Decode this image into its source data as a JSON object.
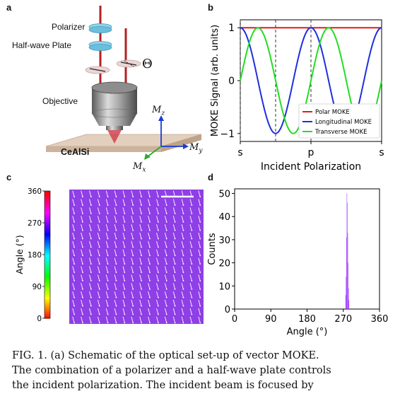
{
  "panel_labels": {
    "a": "a",
    "b": "b",
    "c": "c",
    "d": "d"
  },
  "schematic": {
    "polarizer_label": "Polarizer",
    "halfwave_label": "Half-wave Plate",
    "theta_symbol": "Θ",
    "objective_label": "Objective",
    "sample_label": "CeAlSi",
    "axis_z": "M",
    "axis_z_sub": "z",
    "axis_y": "M",
    "axis_y_sub": "y",
    "axis_x": "M",
    "axis_x_sub": "x",
    "colors": {
      "beam": "#b22222",
      "plate": "#8fd3ea",
      "sample": "#d9c3ae",
      "axis_z": "#1a3ccf",
      "axis_y": "#1a3ccf",
      "axis_x": "#2ea82e"
    }
  },
  "chart_data": [
    {
      "panel": "b",
      "type": "line",
      "x": [
        0,
        90,
        180,
        270,
        360
      ],
      "xticks": [
        0,
        180,
        360
      ],
      "xtick_labels": [
        "s",
        "p",
        "s"
      ],
      "xlabel": "Incident Polarization",
      "ylabel": "MOKE Signal (arb. units)",
      "yticks": [
        -1,
        0,
        1
      ],
      "ylim": [
        -1.15,
        1.15
      ],
      "xlim": [
        0,
        360
      ],
      "vlines_dashed": [
        0,
        90,
        180
      ],
      "series": [
        {
          "name": "Polar MOKE",
          "color": "#e41a1c",
          "formula": "1"
        },
        {
          "name": "Longitudinal MOKE",
          "color": "#1f2fdc",
          "formula": "cos(2x)"
        },
        {
          "name": "Transverse MOKE",
          "color": "#22dd22",
          "formula": "sin(2x)"
        }
      ],
      "legend_position": "bottom-right"
    },
    {
      "panel": "c",
      "type": "heatmap",
      "colorbar_label": "Angle (°)",
      "colorbar_ticks": [
        0,
        90,
        180,
        270,
        360
      ],
      "grid_rows": 16,
      "grid_cols": 16,
      "arrow_angle_deg": 285,
      "background_color": "#8f3fe6",
      "arrow_color": "#ffffff"
    },
    {
      "panel": "d",
      "type": "bar",
      "xlabel": "Angle (°)",
      "ylabel": "Counts",
      "xlim": [
        0,
        360
      ],
      "ylim": [
        0,
        52
      ],
      "xticks": [
        0,
        90,
        180,
        270,
        360
      ],
      "yticks": [
        0,
        10,
        20,
        30,
        40,
        50
      ],
      "bins": [
        {
          "x": 276,
          "count": 6
        },
        {
          "x": 277,
          "count": 14
        },
        {
          "x": 278,
          "count": 31
        },
        {
          "x": 279,
          "count": 50
        },
        {
          "x": 280,
          "count": 46
        },
        {
          "x": 281,
          "count": 33
        },
        {
          "x": 282,
          "count": 20
        },
        {
          "x": 283,
          "count": 9
        },
        {
          "x": 284,
          "count": 4
        }
      ],
      "bar_color": "#9933ff"
    }
  ],
  "caption": {
    "line1": "FIG. 1.   (a) Schematic of the optical set-up of vector MOKE.",
    "line2": "The combination of a polarizer and a half-wave plate controls",
    "line3": "the incident polarization.  The incident beam is focused by"
  }
}
